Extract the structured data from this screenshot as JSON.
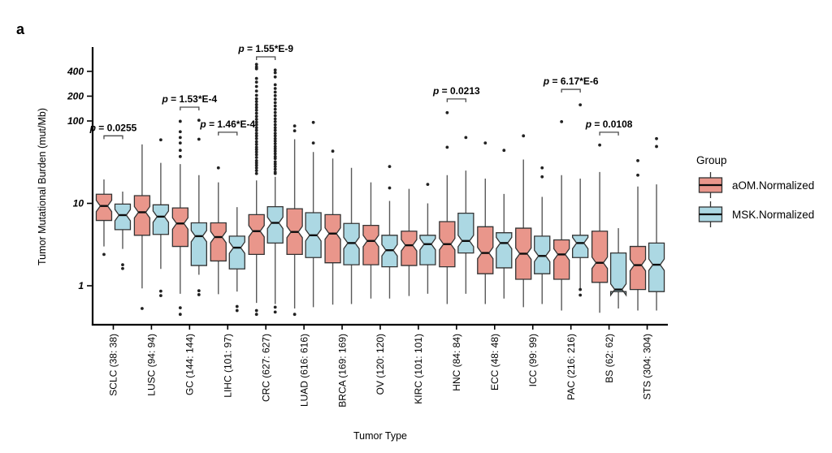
{
  "panel_label": "a",
  "colors": {
    "aom": "#E9968B",
    "msk": "#ACD8E3",
    "box_border": "#333333",
    "whisker": "#595959",
    "median": "#0d0d0d",
    "outlier": "#222222",
    "bracket": "#4a4a4a",
    "axis": "#000000"
  },
  "legend": {
    "title": "Group",
    "items": [
      {
        "label": "aOM.Normalized",
        "color_key": "aom"
      },
      {
        "label": "MSK.Normalized",
        "color_key": "msk"
      }
    ]
  },
  "chart_data": {
    "type": "grouped_notched_boxplot",
    "title": "",
    "xlabel": "Tumor Type",
    "ylabel": "Tumor Mutational Burden (mut/Mb)",
    "y_scale": "log10",
    "ylim": [
      0.4,
      700
    ],
    "grid": false,
    "legend_position": "right",
    "groups": [
      "aOM.Normalized",
      "MSK.Normalized"
    ],
    "y_ticks": [
      {
        "label": "400",
        "value": 400
      },
      {
        "label": "200",
        "value": 200
      },
      {
        "label": "100",
        "value": 100
      },
      {
        "label": "10",
        "value": 10
      },
      {
        "label": "1",
        "value": 1
      }
    ],
    "boxes": [
      {
        "category": "SCLC (38: 38)",
        "aom": {
          "whisker_low": 3.0,
          "q1": 6.2,
          "median": 9.3,
          "q3": 12.9,
          "whisker_high": 19.5,
          "outliers": [
            2.4
          ]
        },
        "msk": {
          "whisker_low": 2.8,
          "q1": 4.8,
          "median": 7.2,
          "q3": 9.8,
          "whisker_high": 13.9,
          "outliers": [
            1.8,
            1.62
          ]
        }
      },
      {
        "category": "LUSC (94: 94)",
        "aom": {
          "whisker_low": 0.93,
          "q1": 4.1,
          "median": 7.8,
          "q3": 12.4,
          "whisker_high": 52,
          "outliers": [
            0.53
          ]
        },
        "msk": {
          "whisker_low": 1.6,
          "q1": 4.2,
          "median": 6.9,
          "q3": 9.6,
          "whisker_high": 31,
          "outliers": [
            59,
            0.86,
            0.76
          ]
        }
      },
      {
        "category": "GC (144: 144)",
        "aom": {
          "whisker_low": 0.8,
          "q1": 3.0,
          "median": 5.7,
          "q3": 8.8,
          "whisker_high": 30,
          "outliers": [
            99,
            74,
            63,
            54,
            44,
            37,
            0.54,
            0.45
          ]
        },
        "msk": {
          "whisker_low": 1.36,
          "q1": 1.76,
          "median": 4.0,
          "q3": 5.8,
          "whisker_high": 22,
          "outliers": [
            102,
            60,
            0.87,
            0.78
          ]
        }
      },
      {
        "category": "LIHC (101: 97)",
        "aom": {
          "whisker_low": 0.79,
          "q1": 2.0,
          "median": 3.9,
          "q3": 5.8,
          "whisker_high": 18,
          "outliers": [
            27
          ]
        },
        "msk": {
          "whisker_low": 0.85,
          "q1": 1.6,
          "median": 2.9,
          "q3": 4.0,
          "whisker_high": 9,
          "outliers": [
            0.56,
            0.5
          ]
        }
      },
      {
        "category": "CRC (627: 627)",
        "aom": {
          "whisker_low": 0.62,
          "q1": 2.4,
          "median": 4.6,
          "q3": 7.3,
          "whisker_high": 19,
          "outliers": [
            487,
            452,
            430,
            328,
            296,
            262,
            231,
            205,
            186,
            172,
            158,
            146,
            135,
            124,
            114,
            105,
            97,
            90,
            83,
            77,
            71,
            66,
            61,
            56,
            52,
            48,
            45,
            42,
            39,
            36,
            33,
            31,
            29,
            27,
            25,
            23,
            0.5,
            0.45
          ]
        },
        "msk": {
          "whisker_low": 0.6,
          "q1": 3.3,
          "median": 5.8,
          "q3": 9.1,
          "whisker_high": 21,
          "outliers": [
            415,
            385,
            342,
            275,
            248,
            224,
            203,
            184,
            167,
            152,
            139,
            127,
            116,
            106,
            98,
            90,
            83,
            77,
            71,
            66,
            61,
            57,
            53,
            49,
            46,
            43,
            40,
            37,
            35,
            32,
            30,
            28,
            26,
            24,
            23,
            0.55,
            0.48
          ]
        }
      },
      {
        "category": "LUAD (616: 616)",
        "aom": {
          "whisker_low": 0.53,
          "q1": 2.4,
          "median": 4.5,
          "q3": 8.6,
          "whisker_high": 60,
          "outliers": [
            87,
            76,
            0.45
          ]
        },
        "msk": {
          "whisker_low": 0.55,
          "q1": 2.2,
          "median": 4.1,
          "q3": 7.7,
          "whisker_high": 42,
          "outliers": [
            96,
            54
          ]
        }
      },
      {
        "category": "BRCA (169: 169)",
        "aom": {
          "whisker_low": 0.59,
          "q1": 1.9,
          "median": 4.3,
          "q3": 7.3,
          "whisker_high": 35,
          "outliers": [
            43
          ]
        },
        "msk": {
          "whisker_low": 0.6,
          "q1": 1.8,
          "median": 3.3,
          "q3": 5.7,
          "whisker_high": 27,
          "outliers": []
        }
      },
      {
        "category": "OV (120: 120)",
        "aom": {
          "whisker_low": 0.7,
          "q1": 1.8,
          "median": 3.5,
          "q3": 5.4,
          "whisker_high": 18,
          "outliers": []
        },
        "msk": {
          "whisker_low": 0.7,
          "q1": 1.7,
          "median": 2.7,
          "q3": 4.1,
          "whisker_high": 10.7,
          "outliers": [
            28,
            15.4
          ]
        }
      },
      {
        "category": "KIRC (101: 101)",
        "aom": {
          "whisker_low": 0.75,
          "q1": 1.76,
          "median": 3.1,
          "q3": 4.6,
          "whisker_high": 15,
          "outliers": []
        },
        "msk": {
          "whisker_low": 0.8,
          "q1": 1.8,
          "median": 3.2,
          "q3": 4.1,
          "whisker_high": 10,
          "outliers": [
            17
          ]
        }
      },
      {
        "category": "HNC (84: 84)",
        "aom": {
          "whisker_low": 0.6,
          "q1": 1.7,
          "median": 3.2,
          "q3": 6.0,
          "whisker_high": 22,
          "outliers": [
            126,
            48
          ]
        },
        "msk": {
          "whisker_low": 0.8,
          "q1": 2.5,
          "median": 3.5,
          "q3": 7.6,
          "whisker_high": 25,
          "outliers": [
            63
          ]
        }
      },
      {
        "category": "ECC (48: 48)",
        "aom": {
          "whisker_low": 0.6,
          "q1": 1.4,
          "median": 2.5,
          "q3": 5.2,
          "whisker_high": 20,
          "outliers": [
            54
          ]
        },
        "msk": {
          "whisker_low": 0.7,
          "q1": 1.65,
          "median": 3.3,
          "q3": 4.4,
          "whisker_high": 13,
          "outliers": [
            44
          ]
        }
      },
      {
        "category": "ICC (99: 99)",
        "aom": {
          "whisker_low": 0.55,
          "q1": 1.2,
          "median": 2.45,
          "q3": 5.0,
          "whisker_high": 34,
          "outliers": [
            66
          ]
        },
        "msk": {
          "whisker_low": 0.6,
          "q1": 1.4,
          "median": 2.3,
          "q3": 4.0,
          "whisker_high": 12,
          "outliers": [
            27,
            21
          ]
        }
      },
      {
        "category": "PAC (216: 216)",
        "aom": {
          "whisker_low": 0.5,
          "q1": 1.2,
          "median": 2.4,
          "q3": 3.6,
          "whisker_high": 22,
          "outliers": [
            98
          ]
        },
        "msk": {
          "whisker_low": 0.9,
          "q1": 2.2,
          "median": 3.3,
          "q3": 4.1,
          "whisker_high": 20,
          "outliers": [
            157,
            0.9,
            0.77
          ]
        }
      },
      {
        "category": "BS (62: 62)",
        "aom": {
          "whisker_low": 0.47,
          "q1": 1.1,
          "median": 1.9,
          "q3": 4.6,
          "whisker_high": 24,
          "outliers": [
            51
          ]
        },
        "msk": {
          "whisker_low": 0.53,
          "q1": 0.85,
          "median": 0.9,
          "q3": 2.5,
          "whisker_high": 5.0,
          "outliers": []
        }
      },
      {
        "category": "STS (304: 304)",
        "aom": {
          "whisker_low": 0.5,
          "q1": 0.9,
          "median": 1.78,
          "q3": 3.0,
          "whisker_high": 16,
          "outliers": [
            33,
            22
          ]
        },
        "msk": {
          "whisker_low": 0.5,
          "q1": 0.85,
          "median": 1.8,
          "q3": 3.3,
          "whisker_high": 17,
          "outliers": [
            61,
            49
          ]
        }
      }
    ],
    "p_values": [
      {
        "category_index": 0,
        "label": "p = 0.0255",
        "bracket_value": 66
      },
      {
        "category_index": 2,
        "label": "p = 1.53*E-4",
        "bracket_value": 147
      },
      {
        "category_index": 3,
        "label": "p = 1.46*E-4",
        "bracket_value": 73
      },
      {
        "category_index": 4,
        "label": "p = 1.55*E-9",
        "bracket_value": 600
      },
      {
        "category_index": 9,
        "label": "p = 0.0213",
        "bracket_value": 185
      },
      {
        "category_index": 12,
        "label": "p = 6.17*E-6",
        "bracket_value": 242
      },
      {
        "category_index": 13,
        "label": "p = 0.0108",
        "bracket_value": 73
      }
    ]
  }
}
